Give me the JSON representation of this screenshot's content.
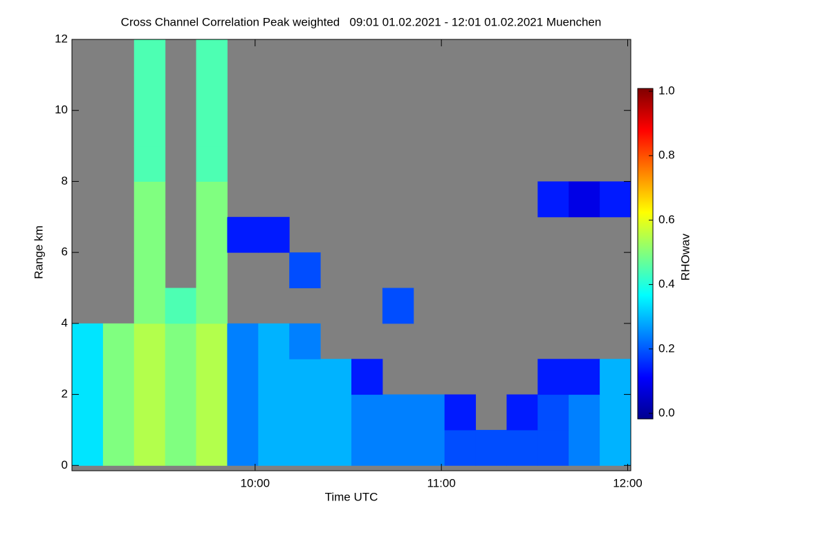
{
  "chart_data": {
    "type": "heatmap",
    "title": "Cross Channel Correlation Peak weighted   09:01 01.02.2021 - 12:01 01.02.2021 Muenchen",
    "xlabel": "Time UTC",
    "ylabel": "Range km",
    "colorbar_label": "RHOwav",
    "colormap": "jet",
    "nodata_color": "#808080",
    "xlim": [
      9.0167,
      12.0167
    ],
    "xticks": [
      {
        "value": 10,
        "label": "10:00"
      },
      {
        "value": 11,
        "label": "11:00"
      },
      {
        "value": 12,
        "label": "12:00"
      }
    ],
    "ylim": [
      -0.15,
      12
    ],
    "yticks": [
      0,
      2,
      4,
      6,
      8,
      10,
      12
    ],
    "clim": [
      0,
      1
    ],
    "cticks": [
      {
        "value": 0,
        "label": "0.0"
      },
      0.2,
      0.4,
      0.6,
      0.8,
      {
        "value": 1,
        "label": "1.0"
      }
    ],
    "xbins": [
      9.0167,
      9.1833,
      9.35,
      9.5167,
      9.6833,
      9.85,
      10.0167,
      10.1833,
      10.35,
      10.5167,
      10.6833,
      10.85,
      11.0167,
      11.1833,
      11.35,
      11.5167,
      11.6833,
      11.85,
      12.0167
    ],
    "ybins": [
      0,
      1,
      2,
      3,
      4,
      5,
      6,
      7,
      8,
      9,
      10,
      11,
      12
    ],
    "z": [
      [
        0.35,
        0.5,
        0.55,
        0.5,
        0.55,
        0.25,
        0.3,
        0.3,
        0.3,
        0.25,
        0.25,
        0.25,
        0.2,
        0.2,
        0.2,
        0.2,
        0.25,
        0.3
      ],
      [
        0.35,
        0.5,
        0.55,
        0.5,
        0.55,
        0.25,
        0.3,
        0.3,
        0.3,
        0.25,
        0.25,
        0.25,
        0.15,
        null,
        0.15,
        0.2,
        0.25,
        0.3
      ],
      [
        0.35,
        0.5,
        0.55,
        0.5,
        0.55,
        0.25,
        0.3,
        0.3,
        0.3,
        0.15,
        null,
        null,
        null,
        null,
        null,
        0.15,
        0.15,
        0.3
      ],
      [
        0.35,
        0.5,
        0.55,
        0.5,
        0.55,
        0.25,
        0.3,
        0.25,
        null,
        null,
        null,
        null,
        null,
        null,
        null,
        null,
        null,
        null
      ],
      [
        null,
        null,
        0.5,
        0.45,
        0.5,
        null,
        null,
        null,
        null,
        null,
        0.2,
        null,
        null,
        null,
        null,
        null,
        null,
        null
      ],
      [
        null,
        null,
        0.5,
        null,
        0.5,
        null,
        null,
        0.2,
        null,
        null,
        null,
        null,
        null,
        null,
        null,
        null,
        null,
        null
      ],
      [
        null,
        null,
        0.5,
        null,
        0.5,
        0.15,
        0.15,
        null,
        null,
        null,
        null,
        null,
        null,
        null,
        null,
        null,
        null,
        null
      ],
      [
        null,
        null,
        0.5,
        null,
        0.5,
        null,
        null,
        null,
        null,
        null,
        null,
        null,
        null,
        null,
        null,
        0.15,
        0.1,
        0.15
      ],
      [
        null,
        null,
        0.45,
        null,
        0.45,
        null,
        null,
        null,
        null,
        null,
        null,
        null,
        null,
        null,
        null,
        null,
        null,
        null
      ],
      [
        null,
        null,
        0.45,
        null,
        0.45,
        null,
        null,
        null,
        null,
        null,
        null,
        null,
        null,
        null,
        null,
        null,
        null,
        null
      ],
      [
        null,
        null,
        0.45,
        null,
        0.45,
        null,
        null,
        null,
        null,
        null,
        null,
        null,
        null,
        null,
        null,
        null,
        null,
        null
      ],
      [
        null,
        null,
        0.45,
        null,
        0.45,
        null,
        null,
        null,
        null,
        null,
        null,
        null,
        null,
        null,
        null,
        null,
        null,
        null
      ]
    ]
  }
}
